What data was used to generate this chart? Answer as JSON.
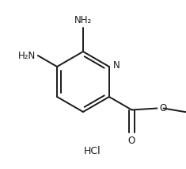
{
  "bg_color": "#ffffff",
  "line_color": "#1a1a1a",
  "text_color": "#1a1a1a",
  "hcl_label": "HCl",
  "nh2_top": "NH₂",
  "nh2_left": "H₂N",
  "n_label": "N",
  "o_bottom": "O",
  "o_ester": "O",
  "figsize": [
    2.35,
    2.13
  ],
  "dpi": 100
}
